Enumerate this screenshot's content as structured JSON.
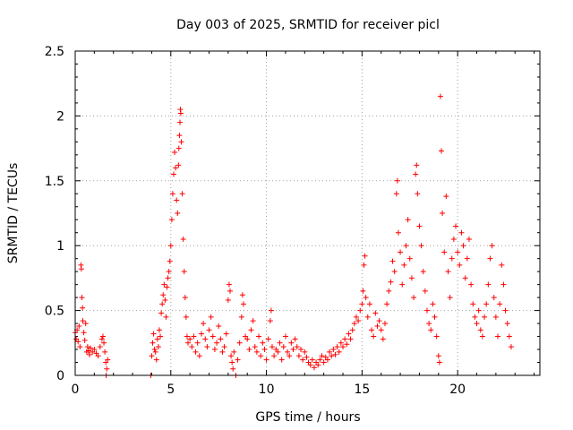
{
  "chart_data": {
    "type": "scatter",
    "title": "Day 003 of 2025, SRMTID for receiver picl",
    "xlabel": "GPS time / hours",
    "ylabel": "SRMTID / TECUs",
    "xlim": [
      0,
      24.3
    ],
    "ylim": [
      0,
      2.5
    ],
    "xticks": [
      0,
      5,
      10,
      15,
      20
    ],
    "xtick_labels": [
      "0",
      "5",
      "10",
      "15",
      "20"
    ],
    "yticks": [
      0,
      0.5,
      1,
      1.5,
      2,
      2.5
    ],
    "ytick_labels": [
      "0",
      "0.5",
      "1",
      "1.5",
      "2",
      "2.5"
    ],
    "grid": true,
    "marker": "+",
    "marker_color": "#ff0000",
    "series": [
      {
        "name": "SRMTID",
        "points": [
          [
            0.0,
            0.33
          ],
          [
            0.05,
            0.28
          ],
          [
            0.1,
            0.35
          ],
          [
            0.15,
            0.26
          ],
          [
            0.2,
            0.38
          ],
          [
            0.25,
            0.22
          ],
          [
            0.3,
            0.85
          ],
          [
            0.32,
            0.82
          ],
          [
            0.35,
            0.6
          ],
          [
            0.38,
            0.52
          ],
          [
            0.4,
            0.42
          ],
          [
            0.45,
            0.33
          ],
          [
            0.5,
            0.27
          ],
          [
            0.55,
            0.4
          ],
          [
            0.6,
            0.18
          ],
          [
            0.65,
            0.22
          ],
          [
            0.7,
            0.19
          ],
          [
            0.75,
            0.16
          ],
          [
            0.8,
            0.21
          ],
          [
            0.9,
            0.18
          ],
          [
            1.0,
            0.2
          ],
          [
            1.1,
            0.17
          ],
          [
            1.2,
            0.15
          ],
          [
            1.3,
            0.22
          ],
          [
            1.4,
            0.28
          ],
          [
            1.45,
            0.3
          ],
          [
            1.5,
            0.25
          ],
          [
            1.55,
            0.18
          ],
          [
            1.6,
            0.1
          ],
          [
            1.62,
            0.0
          ],
          [
            1.65,
            0.05
          ],
          [
            1.7,
            0.12
          ],
          [
            3.95,
            0.0
          ],
          [
            4.0,
            0.15
          ],
          [
            4.05,
            0.25
          ],
          [
            4.1,
            0.32
          ],
          [
            4.15,
            0.2
          ],
          [
            4.2,
            0.18
          ],
          [
            4.25,
            0.12
          ],
          [
            4.3,
            0.28
          ],
          [
            4.35,
            0.22
          ],
          [
            4.4,
            0.35
          ],
          [
            4.45,
            0.3
          ],
          [
            4.5,
            0.48
          ],
          [
            4.55,
            0.55
          ],
          [
            4.6,
            0.62
          ],
          [
            4.65,
            0.7
          ],
          [
            4.7,
            0.58
          ],
          [
            4.75,
            0.45
          ],
          [
            4.8,
            0.68
          ],
          [
            4.85,
            0.75
          ],
          [
            4.9,
            0.8
          ],
          [
            4.95,
            0.88
          ],
          [
            5.0,
            1.0
          ],
          [
            5.05,
            1.2
          ],
          [
            5.1,
            1.4
          ],
          [
            5.15,
            1.55
          ],
          [
            5.2,
            1.72
          ],
          [
            5.25,
            1.6
          ],
          [
            5.3,
            1.35
          ],
          [
            5.35,
            1.25
          ],
          [
            5.4,
            1.62
          ],
          [
            5.42,
            1.75
          ],
          [
            5.45,
            1.85
          ],
          [
            5.48,
            1.95
          ],
          [
            5.5,
            2.05
          ],
          [
            5.52,
            2.02
          ],
          [
            5.55,
            1.8
          ],
          [
            5.6,
            1.4
          ],
          [
            5.65,
            1.05
          ],
          [
            5.7,
            0.8
          ],
          [
            5.75,
            0.6
          ],
          [
            5.8,
            0.45
          ],
          [
            5.85,
            0.3
          ],
          [
            5.9,
            0.25
          ],
          [
            6.0,
            0.28
          ],
          [
            6.1,
            0.22
          ],
          [
            6.2,
            0.3
          ],
          [
            6.3,
            0.18
          ],
          [
            6.4,
            0.25
          ],
          [
            6.5,
            0.15
          ],
          [
            6.6,
            0.32
          ],
          [
            6.7,
            0.4
          ],
          [
            6.8,
            0.28
          ],
          [
            6.9,
            0.22
          ],
          [
            7.0,
            0.35
          ],
          [
            7.1,
            0.45
          ],
          [
            7.2,
            0.3
          ],
          [
            7.3,
            0.2
          ],
          [
            7.4,
            0.25
          ],
          [
            7.5,
            0.38
          ],
          [
            7.6,
            0.28
          ],
          [
            7.7,
            0.18
          ],
          [
            7.8,
            0.22
          ],
          [
            7.9,
            0.32
          ],
          [
            8.0,
            0.58
          ],
          [
            8.05,
            0.7
          ],
          [
            8.1,
            0.65
          ],
          [
            8.15,
            0.15
          ],
          [
            8.2,
            0.1
          ],
          [
            8.25,
            0.05
          ],
          [
            8.3,
            0.18
          ],
          [
            8.4,
            0.0
          ],
          [
            8.5,
            0.12
          ],
          [
            8.6,
            0.25
          ],
          [
            8.7,
            0.45
          ],
          [
            8.75,
            0.62
          ],
          [
            8.8,
            0.55
          ],
          [
            8.9,
            0.3
          ],
          [
            9.0,
            0.28
          ],
          [
            9.1,
            0.2
          ],
          [
            9.2,
            0.35
          ],
          [
            9.3,
            0.42
          ],
          [
            9.4,
            0.22
          ],
          [
            9.5,
            0.18
          ],
          [
            9.6,
            0.3
          ],
          [
            9.7,
            0.15
          ],
          [
            9.8,
            0.25
          ],
          [
            9.9,
            0.2
          ],
          [
            10.0,
            0.12
          ],
          [
            10.1,
            0.28
          ],
          [
            10.2,
            0.42
          ],
          [
            10.25,
            0.5
          ],
          [
            10.3,
            0.22
          ],
          [
            10.4,
            0.15
          ],
          [
            10.5,
            0.2
          ],
          [
            10.6,
            0.18
          ],
          [
            10.7,
            0.25
          ],
          [
            10.8,
            0.12
          ],
          [
            10.9,
            0.22
          ],
          [
            11.0,
            0.3
          ],
          [
            11.1,
            0.18
          ],
          [
            11.2,
            0.15
          ],
          [
            11.3,
            0.25
          ],
          [
            11.4,
            0.2
          ],
          [
            11.5,
            0.28
          ],
          [
            11.6,
            0.22
          ],
          [
            11.7,
            0.15
          ],
          [
            11.8,
            0.2
          ],
          [
            11.9,
            0.12
          ],
          [
            12.0,
            0.18
          ],
          [
            12.1,
            0.14
          ],
          [
            12.2,
            0.1
          ],
          [
            12.3,
            0.08
          ],
          [
            12.4,
            0.12
          ],
          [
            12.5,
            0.06
          ],
          [
            12.6,
            0.1
          ],
          [
            12.7,
            0.08
          ],
          [
            12.8,
            0.12
          ],
          [
            12.9,
            0.15
          ],
          [
            13.0,
            0.1
          ],
          [
            13.1,
            0.14
          ],
          [
            13.2,
            0.12
          ],
          [
            13.3,
            0.18
          ],
          [
            13.4,
            0.15
          ],
          [
            13.5,
            0.2
          ],
          [
            13.6,
            0.16
          ],
          [
            13.7,
            0.22
          ],
          [
            13.8,
            0.18
          ],
          [
            13.9,
            0.25
          ],
          [
            14.0,
            0.22
          ],
          [
            14.1,
            0.28
          ],
          [
            14.2,
            0.24
          ],
          [
            14.3,
            0.32
          ],
          [
            14.4,
            0.28
          ],
          [
            14.5,
            0.35
          ],
          [
            14.6,
            0.4
          ],
          [
            14.7,
            0.45
          ],
          [
            14.8,
            0.42
          ],
          [
            14.9,
            0.5
          ],
          [
            15.0,
            0.55
          ],
          [
            15.05,
            0.65
          ],
          [
            15.1,
            0.85
          ],
          [
            15.15,
            0.92
          ],
          [
            15.2,
            0.6
          ],
          [
            15.3,
            0.45
          ],
          [
            15.4,
            0.55
          ],
          [
            15.5,
            0.35
          ],
          [
            15.6,
            0.3
          ],
          [
            15.7,
            0.48
          ],
          [
            15.8,
            0.38
          ],
          [
            15.9,
            0.42
          ],
          [
            16.0,
            0.35
          ],
          [
            16.1,
            0.28
          ],
          [
            16.2,
            0.4
          ],
          [
            16.3,
            0.55
          ],
          [
            16.4,
            0.65
          ],
          [
            16.5,
            0.72
          ],
          [
            16.6,
            0.88
          ],
          [
            16.7,
            0.8
          ],
          [
            16.8,
            1.4
          ],
          [
            16.85,
            1.5
          ],
          [
            16.9,
            1.1
          ],
          [
            17.0,
            0.95
          ],
          [
            17.1,
            0.7
          ],
          [
            17.2,
            0.85
          ],
          [
            17.3,
            1.0
          ],
          [
            17.4,
            1.2
          ],
          [
            17.5,
            0.9
          ],
          [
            17.6,
            0.75
          ],
          [
            17.7,
            0.6
          ],
          [
            17.8,
            1.55
          ],
          [
            17.85,
            1.62
          ],
          [
            17.9,
            1.4
          ],
          [
            18.0,
            1.15
          ],
          [
            18.1,
            1.0
          ],
          [
            18.2,
            0.8
          ],
          [
            18.3,
            0.65
          ],
          [
            18.4,
            0.5
          ],
          [
            18.5,
            0.4
          ],
          [
            18.6,
            0.35
          ],
          [
            18.7,
            0.55
          ],
          [
            18.8,
            0.45
          ],
          [
            18.9,
            0.3
          ],
          [
            19.0,
            0.15
          ],
          [
            19.05,
            0.1
          ],
          [
            19.1,
            2.15
          ],
          [
            19.15,
            1.73
          ],
          [
            19.2,
            1.25
          ],
          [
            19.3,
            0.95
          ],
          [
            19.4,
            1.38
          ],
          [
            19.5,
            0.8
          ],
          [
            19.6,
            0.6
          ],
          [
            19.7,
            0.9
          ],
          [
            19.8,
            1.05
          ],
          [
            19.9,
            1.15
          ],
          [
            20.0,
            0.95
          ],
          [
            20.1,
            0.85
          ],
          [
            20.2,
            1.1
          ],
          [
            20.3,
            1.0
          ],
          [
            20.4,
            0.75
          ],
          [
            20.5,
            0.9
          ],
          [
            20.6,
            1.05
          ],
          [
            20.7,
            0.7
          ],
          [
            20.8,
            0.55
          ],
          [
            20.9,
            0.45
          ],
          [
            21.0,
            0.4
          ],
          [
            21.1,
            0.5
          ],
          [
            21.2,
            0.35
          ],
          [
            21.3,
            0.3
          ],
          [
            21.4,
            0.45
          ],
          [
            21.5,
            0.55
          ],
          [
            21.6,
            0.7
          ],
          [
            21.7,
            0.9
          ],
          [
            21.8,
            1.0
          ],
          [
            21.9,
            0.6
          ],
          [
            22.0,
            0.45
          ],
          [
            22.1,
            0.3
          ],
          [
            22.2,
            0.55
          ],
          [
            22.3,
            0.85
          ],
          [
            22.4,
            0.7
          ],
          [
            22.5,
            0.5
          ],
          [
            22.6,
            0.4
          ],
          [
            22.7,
            0.3
          ],
          [
            22.8,
            0.22
          ]
        ]
      }
    ]
  }
}
